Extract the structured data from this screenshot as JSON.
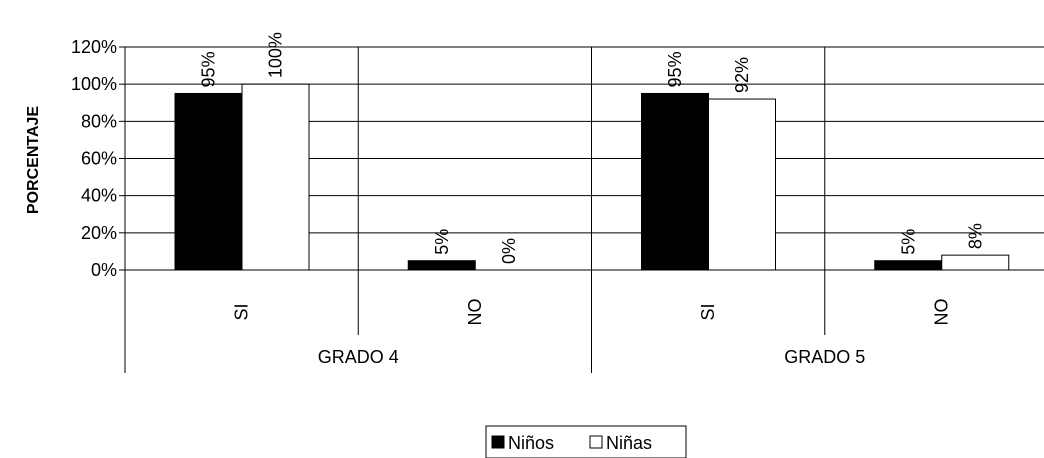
{
  "chart_data": {
    "type": "bar",
    "ylabel": "PORCENTAJE",
    "xlabel": "",
    "ylim": [
      0,
      120
    ],
    "yticks": [
      "0%",
      "20%",
      "40%",
      "60%",
      "80%",
      "100%",
      "120%"
    ],
    "yticks_values": [
      0,
      20,
      40,
      60,
      80,
      100,
      120
    ],
    "grid": true,
    "legend_position": "bottom",
    "groups": [
      {
        "label": "GRADO 4",
        "categories": [
          "SI",
          "NO"
        ]
      },
      {
        "label": "GRADO 5",
        "categories": [
          "SI",
          "NO"
        ]
      }
    ],
    "categories": [
      "SI",
      "NO",
      "SI",
      "NO"
    ],
    "series": [
      {
        "name": "Niños",
        "color": "#000000",
        "values": [
          95,
          5,
          95,
          5
        ],
        "labels": [
          "95%",
          "5%",
          "95%",
          "5%"
        ]
      },
      {
        "name": "Niñas",
        "color": "#ffffff",
        "values": [
          100,
          0,
          92,
          8
        ],
        "labels": [
          "100%",
          "0%",
          "92%",
          "8%"
        ]
      }
    ]
  }
}
